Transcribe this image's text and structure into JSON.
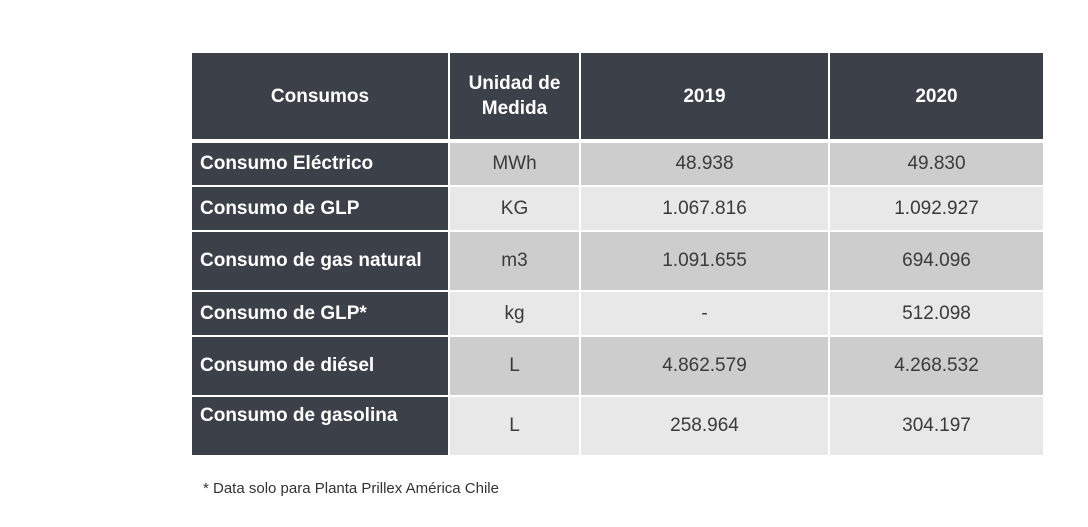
{
  "table": {
    "headers": [
      "Consumos",
      "Unidad de Medida",
      "2019",
      "2020"
    ],
    "rows": [
      {
        "label": "Consumo Eléctrico",
        "unit": "MWh",
        "y2019": "48.938",
        "y2020": "49.830"
      },
      {
        "label": "Consumo de GLP",
        "unit": "KG",
        "y2019": "1.067.816",
        "y2020": "1.092.927"
      },
      {
        "label": "Consumo de gas natural",
        "unit": "m3",
        "y2019": "1.091.655",
        "y2020": "694.096"
      },
      {
        "label": "Consumo de GLP*",
        "unit": "kg",
        "y2019": "-",
        "y2020": "512.098"
      },
      {
        "label": "Consumo de diésel",
        "unit": "L",
        "y2019": "4.862.579",
        "y2020": "4.268.532"
      },
      {
        "label": "Consumo de gasolina",
        "unit": "L",
        "y2019": "258.964",
        "y2020": "304.197"
      }
    ]
  },
  "footnote": "* Data solo para Planta Prillex América Chile",
  "colors": {
    "header_bg": "#3b4049",
    "row_dark": "#cdcdcd",
    "row_light": "#e7e8e7"
  }
}
